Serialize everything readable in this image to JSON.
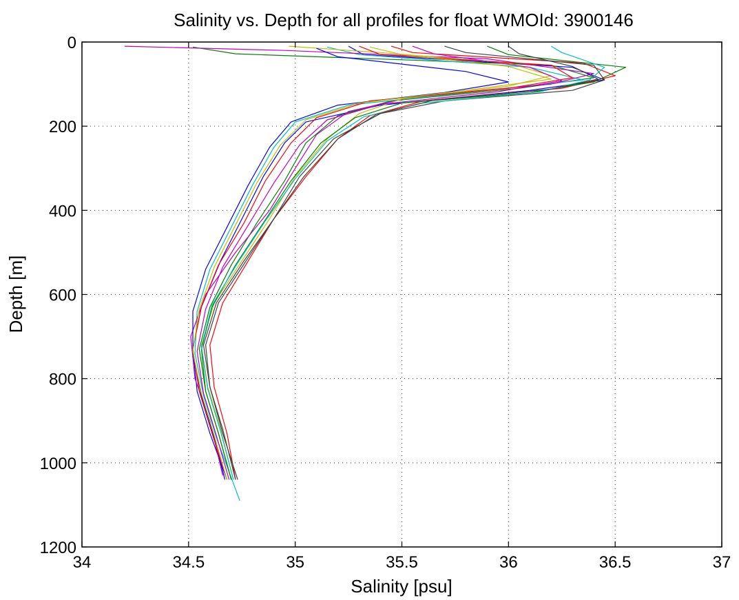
{
  "chart_data": {
    "type": "line",
    "title": "Salinity vs. Depth for all profiles for float WMOId: 3900146",
    "xlabel": "Salinity [psu]",
    "ylabel": "Depth [m]",
    "xlim": [
      34,
      37
    ],
    "ylim": [
      0,
      1200
    ],
    "y_reversed": true,
    "grid": true,
    "legend": "none",
    "x_ticks": [
      "34",
      "34.5",
      "35",
      "35.5",
      "36",
      "36.5",
      "37"
    ],
    "y_ticks": [
      "0",
      "200",
      "400",
      "600",
      "800",
      "1000",
      "1200"
    ],
    "series_colors": [
      "#0000ff",
      "#008000",
      "#ff0000",
      "#00bfbf",
      "#bf00bf",
      "#bfbf00",
      "#404040"
    ],
    "series": [
      {
        "points": [
          [
            35.25,
            10
          ],
          [
            35.32,
            30
          ],
          [
            36.3,
            60
          ],
          [
            36.45,
            90
          ],
          [
            36.1,
            115
          ],
          [
            35.4,
            150
          ],
          [
            35.05,
            190
          ],
          [
            34.95,
            240
          ],
          [
            34.85,
            320
          ],
          [
            34.75,
            420
          ],
          [
            34.65,
            520
          ],
          [
            34.56,
            630
          ],
          [
            34.52,
            730
          ],
          [
            34.54,
            830
          ],
          [
            34.6,
            930
          ],
          [
            34.68,
            1040
          ]
        ]
      },
      {
        "points": [
          [
            34.52,
            12
          ],
          [
            34.72,
            28
          ],
          [
            36.2,
            55
          ],
          [
            36.4,
            85
          ],
          [
            36.05,
            110
          ],
          [
            35.45,
            140
          ],
          [
            35.2,
            175
          ],
          [
            35.05,
            240
          ],
          [
            34.95,
            330
          ],
          [
            34.82,
            430
          ],
          [
            34.7,
            530
          ],
          [
            34.6,
            630
          ],
          [
            34.55,
            730
          ],
          [
            34.58,
            830
          ],
          [
            34.64,
            930
          ],
          [
            34.7,
            1040
          ]
        ]
      },
      {
        "points": [
          [
            35.45,
            10
          ],
          [
            35.55,
            25
          ],
          [
            36.35,
            50
          ],
          [
            36.5,
            80
          ],
          [
            36.25,
            110
          ],
          [
            35.6,
            140
          ],
          [
            35.35,
            175
          ],
          [
            35.2,
            230
          ],
          [
            35.05,
            320
          ],
          [
            34.9,
            420
          ],
          [
            34.78,
            520
          ],
          [
            34.66,
            620
          ],
          [
            34.6,
            720
          ],
          [
            34.62,
            820
          ],
          [
            34.68,
            930
          ],
          [
            34.72,
            1040
          ]
        ]
      },
      {
        "points": [
          [
            35.15,
            12
          ],
          [
            35.3,
            30
          ],
          [
            36.1,
            60
          ],
          [
            36.35,
            90
          ],
          [
            35.9,
            115
          ],
          [
            35.25,
            150
          ],
          [
            35.0,
            190
          ],
          [
            34.9,
            250
          ],
          [
            34.8,
            340
          ],
          [
            34.7,
            440
          ],
          [
            34.6,
            540
          ],
          [
            34.54,
            640
          ],
          [
            34.53,
            740
          ],
          [
            34.57,
            840
          ],
          [
            34.63,
            940
          ],
          [
            34.74,
            1090
          ]
        ]
      },
      {
        "points": [
          [
            34.2,
            10
          ],
          [
            34.95,
            20
          ],
          [
            35.9,
            40
          ],
          [
            36.4,
            75
          ],
          [
            36.2,
            100
          ],
          [
            35.55,
            130
          ],
          [
            35.25,
            165
          ],
          [
            35.1,
            220
          ],
          [
            35.0,
            300
          ],
          [
            34.88,
            400
          ],
          [
            34.72,
            500
          ],
          [
            34.58,
            600
          ],
          [
            34.51,
            700
          ],
          [
            34.53,
            800
          ],
          [
            34.6,
            900
          ],
          [
            34.66,
            1030
          ]
        ]
      },
      {
        "points": [
          [
            34.97,
            10
          ],
          [
            35.4,
            25
          ],
          [
            36.0,
            50
          ],
          [
            36.2,
            80
          ],
          [
            36.0,
            105
          ],
          [
            35.5,
            135
          ],
          [
            35.3,
            170
          ],
          [
            35.15,
            230
          ],
          [
            35.0,
            320
          ],
          [
            34.88,
            420
          ],
          [
            34.75,
            520
          ],
          [
            34.62,
            620
          ],
          [
            34.56,
            720
          ],
          [
            34.59,
            820
          ],
          [
            34.65,
            920
          ],
          [
            34.71,
            1040
          ]
        ]
      },
      {
        "points": [
          [
            35.7,
            10
          ],
          [
            35.8,
            25
          ],
          [
            36.4,
            55
          ],
          [
            36.45,
            90
          ],
          [
            36.3,
            115
          ],
          [
            35.7,
            140
          ],
          [
            35.4,
            170
          ],
          [
            35.18,
            230
          ],
          [
            35.02,
            320
          ],
          [
            34.9,
            420
          ],
          [
            34.76,
            520
          ],
          [
            34.63,
            620
          ],
          [
            34.57,
            720
          ],
          [
            34.6,
            820
          ],
          [
            34.66,
            930
          ],
          [
            34.73,
            1040
          ]
        ]
      },
      {
        "points": [
          [
            35.1,
            15
          ],
          [
            35.2,
            35
          ],
          [
            35.8,
            70
          ],
          [
            36.0,
            95
          ],
          [
            35.7,
            120
          ],
          [
            35.2,
            150
          ],
          [
            34.98,
            190
          ],
          [
            34.88,
            250
          ],
          [
            34.78,
            340
          ],
          [
            34.68,
            440
          ],
          [
            34.58,
            540
          ],
          [
            34.52,
            640
          ],
          [
            34.52,
            740
          ],
          [
            34.56,
            840
          ],
          [
            34.62,
            940
          ],
          [
            34.67,
            1040
          ]
        ]
      },
      {
        "points": [
          [
            35.9,
            10
          ],
          [
            36.0,
            30
          ],
          [
            36.55,
            60
          ],
          [
            36.4,
            95
          ],
          [
            36.1,
            120
          ],
          [
            35.5,
            145
          ],
          [
            35.28,
            180
          ],
          [
            35.12,
            240
          ],
          [
            34.98,
            330
          ],
          [
            34.85,
            430
          ],
          [
            34.72,
            530
          ],
          [
            34.61,
            630
          ],
          [
            34.56,
            730
          ],
          [
            34.58,
            830
          ],
          [
            34.64,
            930
          ],
          [
            34.7,
            1040
          ]
        ]
      },
      {
        "points": [
          [
            35.3,
            10
          ],
          [
            35.4,
            30
          ],
          [
            36.2,
            55
          ],
          [
            36.3,
            85
          ],
          [
            36.0,
            110
          ],
          [
            35.35,
            140
          ],
          [
            35.1,
            180
          ],
          [
            34.98,
            240
          ],
          [
            34.86,
            330
          ],
          [
            34.76,
            430
          ],
          [
            34.64,
            530
          ],
          [
            34.56,
            630
          ],
          [
            34.52,
            730
          ],
          [
            34.55,
            830
          ],
          [
            34.61,
            930
          ],
          [
            34.68,
            1040
          ]
        ]
      },
      {
        "points": [
          [
            36.2,
            10
          ],
          [
            36.25,
            25
          ],
          [
            36.45,
            60
          ],
          [
            36.38,
            90
          ],
          [
            36.15,
            118
          ],
          [
            35.6,
            145
          ],
          [
            35.32,
            178
          ],
          [
            35.15,
            235
          ],
          [
            35.0,
            325
          ],
          [
            34.86,
            425
          ],
          [
            34.73,
            525
          ],
          [
            34.61,
            625
          ],
          [
            34.56,
            725
          ],
          [
            34.59,
            825
          ],
          [
            34.65,
            925
          ],
          [
            34.71,
            1040
          ]
        ]
      },
      {
        "points": [
          [
            35.55,
            10
          ],
          [
            35.65,
            28
          ],
          [
            36.1,
            60
          ],
          [
            36.25,
            92
          ],
          [
            35.95,
            118
          ],
          [
            35.4,
            148
          ],
          [
            35.15,
            185
          ],
          [
            35.02,
            245
          ],
          [
            34.9,
            335
          ],
          [
            34.78,
            435
          ],
          [
            34.66,
            535
          ],
          [
            34.58,
            635
          ],
          [
            34.54,
            735
          ],
          [
            34.57,
            835
          ],
          [
            34.63,
            935
          ],
          [
            34.69,
            1040
          ]
        ]
      },
      {
        "points": [
          [
            35.35,
            12
          ],
          [
            35.5,
            30
          ],
          [
            36.0,
            58
          ],
          [
            36.2,
            88
          ],
          [
            35.8,
            115
          ],
          [
            35.3,
            145
          ],
          [
            35.05,
            185
          ],
          [
            34.93,
            245
          ],
          [
            34.82,
            335
          ],
          [
            34.72,
            435
          ],
          [
            34.62,
            535
          ],
          [
            34.55,
            635
          ],
          [
            34.52,
            735
          ],
          [
            34.56,
            835
          ],
          [
            34.62,
            935
          ],
          [
            34.68,
            1040
          ]
        ]
      },
      {
        "points": [
          [
            36.0,
            10
          ],
          [
            36.05,
            28
          ],
          [
            36.3,
            58
          ],
          [
            36.42,
            88
          ],
          [
            36.2,
            112
          ],
          [
            35.65,
            138
          ],
          [
            35.38,
            172
          ],
          [
            35.2,
            230
          ],
          [
            35.04,
            320
          ],
          [
            34.9,
            420
          ],
          [
            34.77,
            520
          ],
          [
            34.64,
            620
          ],
          [
            34.58,
            720
          ],
          [
            34.6,
            820
          ],
          [
            34.66,
            920
          ],
          [
            34.72,
            1040
          ]
        ]
      }
    ]
  }
}
